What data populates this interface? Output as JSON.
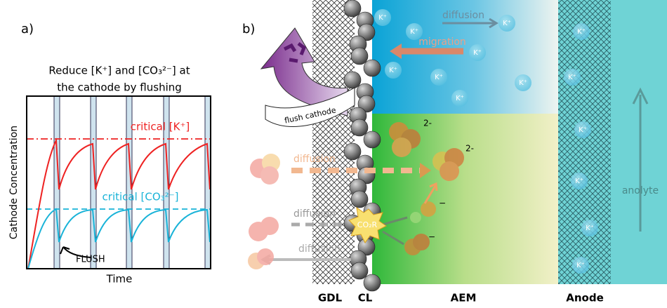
{
  "panel_a": {
    "label": "a)",
    "title_lines": [
      "Reduce [K⁺] and [CO₃²⁻] at",
      "the cathode by flushing"
    ],
    "y_label": "Cathode Concentration",
    "x_label": "Time",
    "critical_k": "critical [K⁺]",
    "critical_co3": "critical [CO₃²⁻]",
    "flush": "FLUSH"
  },
  "panel_b": {
    "label": "b)",
    "diffusion_top": "diffusion",
    "migration": "migration",
    "flush_cathode": "flush cathode",
    "diffusion_labels": [
      "diffusion",
      "diffusion",
      "diffusion"
    ],
    "co2r": "CO₂R",
    "charges_2minus": [
      "2-",
      "2-"
    ],
    "charges_minus": [
      "−",
      "−"
    ],
    "k_ions": [
      "K⁺",
      "K⁺",
      "K⁺",
      "K⁺",
      "K⁺",
      "K⁺",
      "K⁺",
      "K⁺",
      "K⁺",
      "K⁺",
      "K⁺",
      "K⁺",
      "K⁺",
      "K⁺"
    ],
    "anolyte": "anolyte",
    "layers": [
      "GDL",
      "CL",
      "AEM",
      "Anode"
    ]
  }
}
